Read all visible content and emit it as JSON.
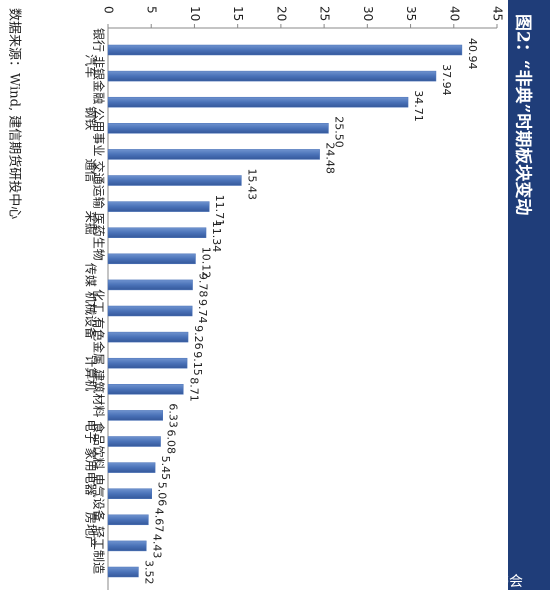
{
  "chart_data": {
    "type": "bar",
    "title": "图2：“非典”时期板块变动",
    "source": "数据来源：Wind, 建信期货研投中心",
    "watermark": "雪球：巴菲特读书会",
    "categories": [
      "银行",
      "汽车",
      "非银金融",
      "钢铁",
      "公用事业",
      "通信",
      "交通运输",
      "采掘",
      "医药生物",
      "传媒",
      "化工",
      "机械设备",
      "有色金属",
      "计算机",
      "建筑材料",
      "电子",
      "食品饮料",
      "家用电器",
      "电气设备",
      "房地产",
      "轻工制造"
    ],
    "values": [
      40.94,
      37.94,
      34.71,
      25.5,
      24.48,
      15.43,
      11.71,
      11.34,
      10.12,
      9.78,
      9.74,
      9.26,
      9.15,
      8.71,
      6.33,
      6.08,
      5.45,
      5.06,
      4.67,
      4.43,
      3.52
    ],
    "value_labels": [
      "40.94",
      "37.94",
      "34.71",
      "25.50",
      "24.48",
      "15.43",
      "11.71",
      "11.34",
      "10.12",
      "9.78",
      "9.74",
      "9.26",
      "9.15",
      "8.71",
      "6.33",
      "6.08",
      "5.45",
      "5.06",
      "4.67",
      "4.43",
      "3.52"
    ],
    "color": "#4a72b8",
    "ylim": [
      0,
      45
    ],
    "yticks": [
      0,
      5,
      10,
      15,
      20,
      25,
      30,
      35,
      40,
      45
    ],
    "grid": false
  }
}
